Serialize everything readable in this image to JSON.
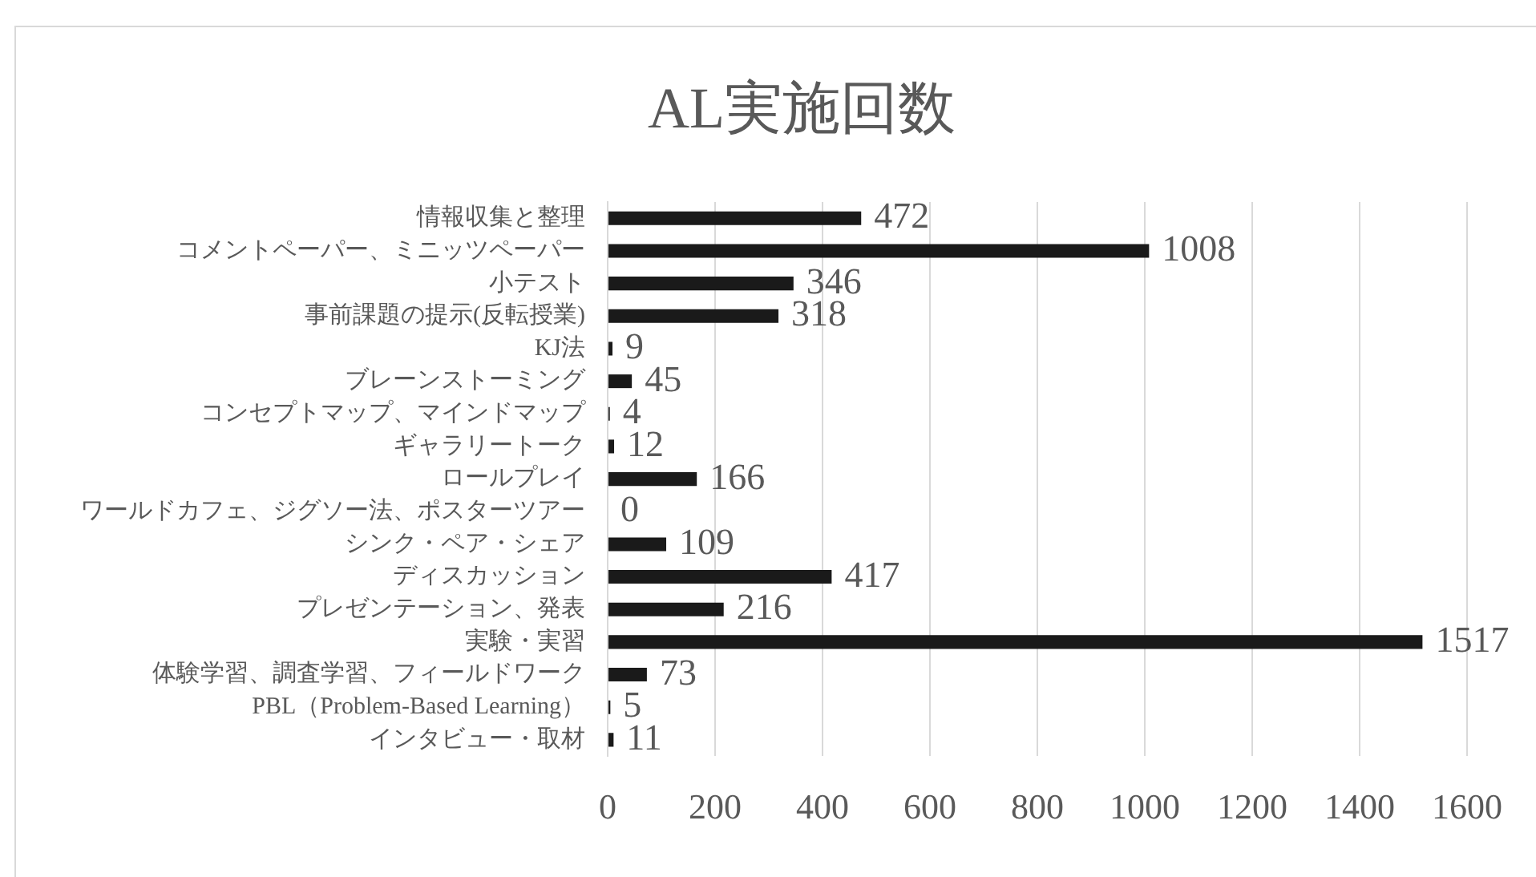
{
  "chart_data": {
    "type": "bar",
    "title": "AL実施回数",
    "orientation": "horizontal",
    "categories": [
      "情報収集と整理",
      "コメントペーパー、ミニッツペーパー",
      "小テスト",
      "事前課題の提示(反転授業)",
      "KJ法",
      "ブレーンストーミング",
      "コンセプトマップ、マインドマップ",
      "ギャラリートーク",
      "ロールプレイ",
      "ワールドカフェ、ジグソー法、ポスターツアー",
      "シンク・ペア・シェア",
      "ディスカッション",
      "プレゼンテーション、発表",
      "実験・実習",
      "体験学習、調査学習、フィールドワーク",
      "PBL（Problem-Based Learning）",
      "インタビュー・取材"
    ],
    "values": [
      472,
      1008,
      346,
      318,
      9,
      45,
      4,
      12,
      166,
      0,
      109,
      417,
      216,
      1517,
      73,
      5,
      11
    ],
    "color": "#1a1a1a",
    "xlim": [
      0,
      1600
    ],
    "xticks": [
      0,
      200,
      400,
      600,
      800,
      1000,
      1200,
      1400,
      1600
    ],
    "grid": "x",
    "data_labels": true,
    "legend": false
  }
}
